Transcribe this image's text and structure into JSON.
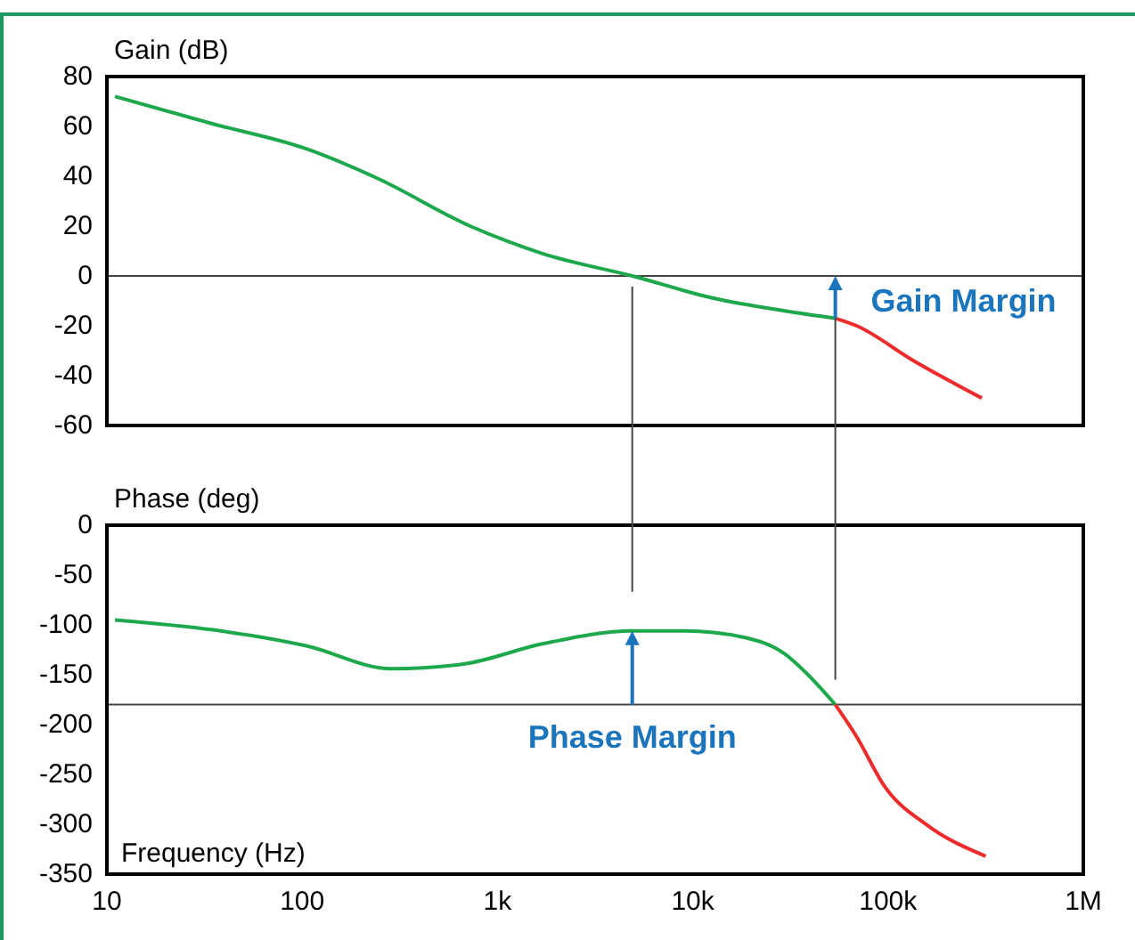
{
  "chart_data": [
    {
      "type": "line",
      "ylabel": "Gain (dB)",
      "xlim": [
        10,
        1000000
      ],
      "ylim": [
        -60,
        80
      ],
      "yticks": [
        80,
        60,
        40,
        20,
        0,
        -20,
        -40,
        -60
      ],
      "log": "x",
      "grid": false,
      "tick_labels": "y",
      "series": [
        {
          "color": "#1ea84c",
          "x": [
            11,
            35,
            105,
            245,
            725,
            1700,
            4900,
            12900,
            29500,
            53700
          ],
          "values": [
            72,
            61,
            51,
            39,
            20,
            9,
            0,
            -9,
            -14,
            -17
          ]
        },
        {
          "color": "#ee2b2b",
          "x": [
            53700,
            69000,
            135000,
            302000
          ],
          "values": [
            -17,
            -20,
            -34,
            -49
          ]
        }
      ],
      "ref_lines": [
        {
          "axis": "y",
          "value": 0,
          "color": "#444444"
        }
      ],
      "annotations": [
        {
          "text": "Gain Margin",
          "x": 53700,
          "y": -17
        }
      ]
    },
    {
      "type": "line",
      "ylabel": "Phase (deg)",
      "xlabel": "Frequency (Hz)",
      "xlim": [
        10,
        1000000
      ],
      "xticks": [
        {
          "value": 10,
          "label": "10"
        },
        {
          "value": 100,
          "label": "100"
        },
        {
          "value": 1000,
          "label": "1k"
        },
        {
          "value": 10000,
          "label": "10k"
        },
        {
          "value": 100000,
          "label": "100k"
        },
        {
          "value": 1000000,
          "label": "1M"
        }
      ],
      "ylim": [
        -350,
        0
      ],
      "yticks": [
        0,
        -50,
        -100,
        -150,
        -200,
        -250,
        -300,
        -350
      ],
      "log": "x",
      "grid": false,
      "series": [
        {
          "color": "#1ea84c",
          "x": [
            11,
            35,
            105,
            288,
            680,
            1700,
            4900,
            9100,
            17800,
            29500,
            38000,
            53700
          ],
          "values": [
            -95,
            -105,
            -121,
            -144,
            -139,
            -119,
            -106,
            -106,
            -112,
            -129,
            -148,
            -180
          ]
        },
        {
          "color": "#ee2b2b",
          "x": [
            53700,
            69000,
            96000,
            159000,
            316000
          ],
          "values": [
            -180,
            -212,
            -262,
            -301,
            -332
          ]
        }
      ],
      "ref_lines": [
        {
          "axis": "y",
          "value": -180,
          "color": "#444444"
        }
      ],
      "annotations": [
        {
          "text": "Phase Margin",
          "x": 4900,
          "y": -106
        }
      ]
    }
  ]
}
